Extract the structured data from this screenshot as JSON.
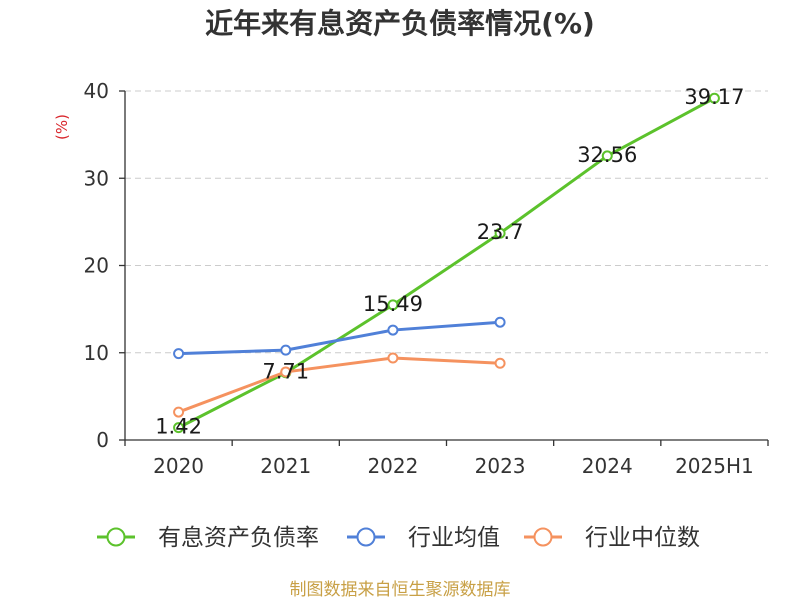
{
  "chart_data": {
    "type": "line",
    "title": "近年来有息资产负债率情况(%)",
    "ylabel": "(%)",
    "categories": [
      "2020",
      "2021",
      "2022",
      "2023",
      "2024",
      "2025H1"
    ],
    "yticks": [
      0,
      10,
      20,
      30,
      40
    ],
    "ylim": [
      0,
      40
    ],
    "grid": true,
    "legend": "bottom",
    "series": [
      {
        "name": "有息资产负债率",
        "color": "#5cc22c",
        "data_labels": true,
        "values": [
          1.42,
          7.71,
          15.49,
          23.7,
          32.56,
          39.17
        ]
      },
      {
        "name": "行业均值",
        "color": "#5080d8",
        "data_labels": false,
        "values": [
          9.9,
          10.3,
          12.6,
          13.5,
          null,
          null
        ]
      },
      {
        "name": "行业中位数",
        "color": "#f5925f",
        "data_labels": false,
        "values": [
          3.2,
          7.8,
          9.4,
          8.8,
          null,
          null
        ]
      }
    ]
  },
  "colors": {
    "ylabel": "#d9262c",
    "source_note": "#c8a046"
  },
  "source_note": "制图数据来自恒生聚源数据库"
}
